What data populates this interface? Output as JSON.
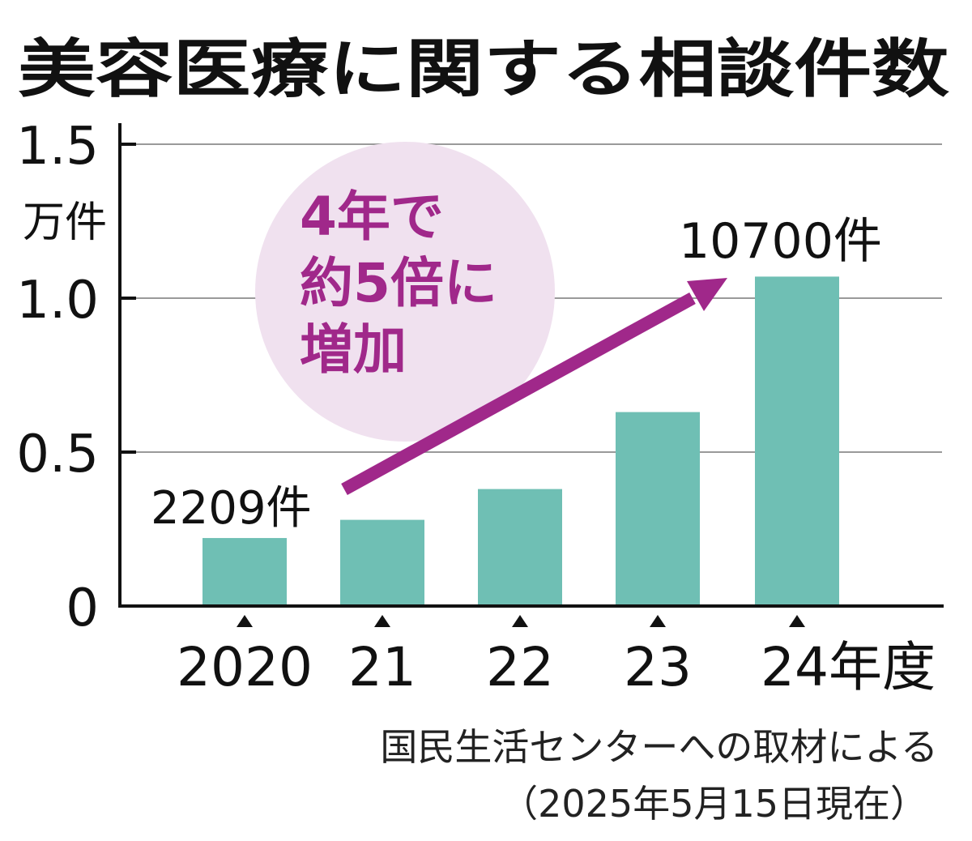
{
  "chart_data": {
    "type": "bar",
    "title": "美容医療に関する相談件数",
    "ylabel": "万件",
    "ylim": [
      0,
      1.5
    ],
    "yticks": [
      {
        "value": 0,
        "label": "0"
      },
      {
        "value": 0.5,
        "label": "0.5"
      },
      {
        "value": 1.0,
        "label": "1.0"
      },
      {
        "value": 1.5,
        "label": "1.5"
      }
    ],
    "categories": [
      "2020",
      "21",
      "22",
      "23",
      "24年度"
    ],
    "values": [
      0.2209,
      0.28,
      0.38,
      0.63,
      1.07
    ],
    "bar_color": "#6fbfb4",
    "annotations": {
      "start_label": "2209件",
      "end_label": "10700件",
      "callout_lines": [
        "4年で",
        "約5倍に",
        "増加"
      ],
      "callout_color": "#a0288a",
      "callout_bg": "#f0e1ef",
      "arrow_color": "#a0288a"
    },
    "source_lines": [
      "国民生活センターへの取材による",
      "（2025年5月15日現在）"
    ]
  }
}
